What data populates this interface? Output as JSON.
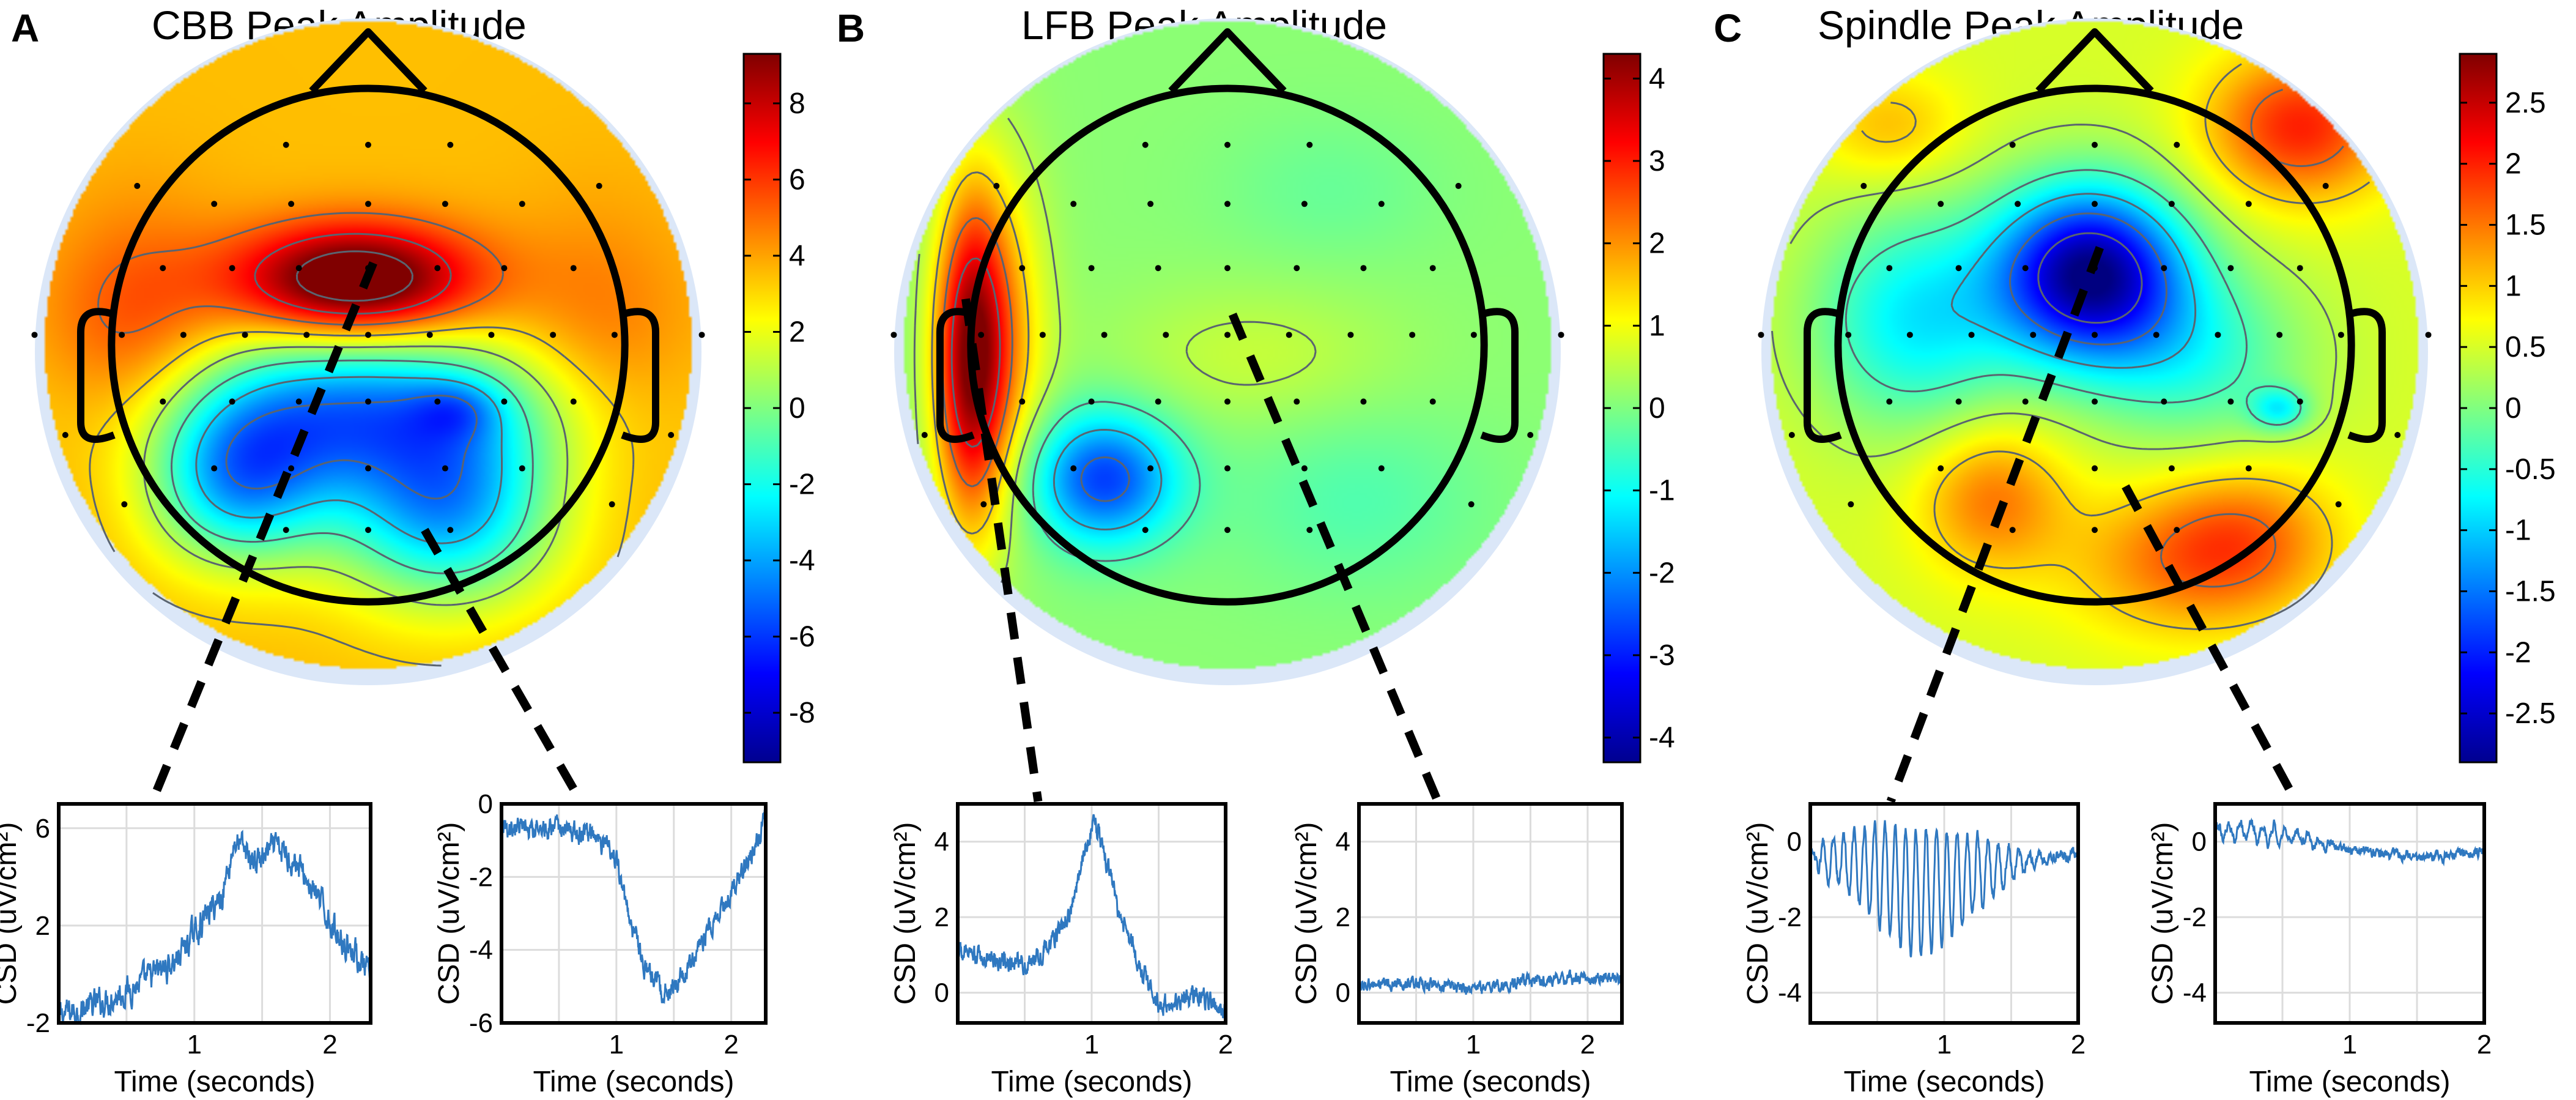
{
  "figure": {
    "colors": {
      "ring": "#dbe7f8",
      "head": "#000000",
      "contour": "#5a6470",
      "trace": "#2f78c0",
      "grid": "#dcdcdc"
    }
  },
  "chart_data": [
    {
      "type": "heatmap",
      "id": "A",
      "panel_letter": "A",
      "title": "CBB Peak Amplitude",
      "colorbar": {
        "range": [
          -9.3,
          9.3
        ],
        "ticks": [
          8,
          6,
          4,
          2,
          0,
          -2,
          -4,
          -6,
          -8
        ],
        "tick_labels": [
          "8",
          "6",
          "4",
          "2",
          "0",
          "-2",
          "-4",
          "-6",
          "-8"
        ],
        "colormap": "jet"
      },
      "topomap": {
        "baseline": 3.5,
        "blobs": [
          {
            "u": -0.05,
            "v": -0.25,
            "amp": 8.0,
            "sx": 0.32,
            "sy": 0.15
          },
          {
            "u": -0.9,
            "v": 0.0,
            "amp": 2.5,
            "sx": 0.25,
            "sy": 0.35
          },
          {
            "u": 0.9,
            "v": 0.0,
            "amp": 1.5,
            "sx": 0.25,
            "sy": 0.35
          },
          {
            "u": -0.05,
            "v": 0.25,
            "amp": -7.5,
            "sx": 0.55,
            "sy": 0.22
          },
          {
            "u": -0.5,
            "v": 0.55,
            "amp": -6.5,
            "sx": 0.25,
            "sy": 0.22
          },
          {
            "u": 0.3,
            "v": 0.65,
            "amp": -7.0,
            "sx": 0.3,
            "sy": 0.25
          },
          {
            "u": 0.35,
            "v": 0.25,
            "amp": -2.0,
            "sx": 0.12,
            "sy": 0.08
          }
        ]
      },
      "pointers": [
        {
          "from": [
            0.02,
            -0.32
          ],
          "to_panel": "A1"
        },
        {
          "from": [
            0.22,
            0.72
          ],
          "to_panel": "A2"
        }
      ],
      "time_series": [
        {
          "id": "A1",
          "x_range": [
            0,
            2.3
          ],
          "y_range": [
            -2,
            7
          ],
          "x_ticks": [
            1,
            2
          ],
          "y_ticks": [
            -2,
            2,
            6
          ],
          "y_tick_labels": [
            "-2",
            "2",
            "6"
          ],
          "x_label": "Time (seconds)",
          "y_label": "CSD (uV/cm²)",
          "keypoints": [
            [
              0,
              -1.7
            ],
            [
              0.3,
              -1.2
            ],
            [
              0.6,
              -0.4
            ],
            [
              0.85,
              0.5
            ],
            [
              1.0,
              1.7
            ],
            [
              1.1,
              2.5
            ],
            [
              1.2,
              3.2
            ],
            [
              1.3,
              5.5
            ],
            [
              1.45,
              4.6
            ],
            [
              1.6,
              5.2
            ],
            [
              1.75,
              4.6
            ],
            [
              1.9,
              3.2
            ],
            [
              2.05,
              1.7
            ],
            [
              2.2,
              0.8
            ],
            [
              2.3,
              -0.2
            ]
          ],
          "noise": 0.45,
          "oscillation": 0
        },
        {
          "id": "A2",
          "x_range": [
            0,
            2.3
          ],
          "y_range": [
            -6,
            0
          ],
          "x_ticks": [
            1,
            2
          ],
          "y_ticks": [
            -6,
            -4,
            -2,
            0
          ],
          "y_tick_labels": [
            "-6",
            "-4",
            "-2",
            "0"
          ],
          "x_label": "Time (seconds)",
          "y_label": "CSD (uV/cm²)",
          "keypoints": [
            [
              0,
              -0.6
            ],
            [
              0.4,
              -0.7
            ],
            [
              0.8,
              -0.8
            ],
            [
              1.0,
              -1.5
            ],
            [
              1.1,
              -3.0
            ],
            [
              1.25,
              -4.5
            ],
            [
              1.4,
              -5.2
            ],
            [
              1.6,
              -4.7
            ],
            [
              1.8,
              -3.5
            ],
            [
              2.0,
              -2.5
            ],
            [
              2.2,
              -1.2
            ],
            [
              2.3,
              -0.3
            ]
          ],
          "noise": 0.22,
          "oscillation": 0
        }
      ]
    },
    {
      "type": "heatmap",
      "id": "B",
      "panel_letter": "B",
      "title": "LFB Peak Amplitude",
      "colorbar": {
        "range": [
          -4.3,
          4.3
        ],
        "ticks": [
          4,
          3,
          2,
          1,
          0,
          -1,
          -2,
          -3,
          -4
        ],
        "tick_labels": [
          "4",
          "3",
          "2",
          "1",
          "0",
          "-1",
          "-2",
          "-3",
          "-4"
        ],
        "colormap": "jet"
      },
      "topomap": {
        "baseline": 0.1,
        "blobs": [
          {
            "u": -1.0,
            "v": 0.05,
            "amp": 4.0,
            "sx": 0.1,
            "sy": 0.45
          },
          {
            "u": -0.85,
            "v": -0.05,
            "amp": 1.2,
            "sx": 0.12,
            "sy": 0.45
          },
          {
            "u": -0.48,
            "v": 0.52,
            "amp": -2.8,
            "sx": 0.2,
            "sy": 0.18
          },
          {
            "u": 0.1,
            "v": 0.05,
            "amp": 0.5,
            "sx": 0.4,
            "sy": 0.2
          },
          {
            "u": 0.5,
            "v": 0.6,
            "amp": -0.5,
            "sx": 0.35,
            "sy": 0.25
          },
          {
            "u": 0.4,
            "v": -0.6,
            "amp": -0.3,
            "sx": 0.3,
            "sy": 0.2
          }
        ]
      },
      "pointers": [
        {
          "from": [
            -1.02,
            -0.18
          ],
          "to_panel": "B1"
        },
        {
          "from": [
            0.02,
            -0.12
          ],
          "to_panel": "B2"
        }
      ],
      "time_series": [
        {
          "id": "B1",
          "x_range": [
            0,
            2
          ],
          "y_range": [
            -0.8,
            5
          ],
          "x_ticks": [
            1,
            2
          ],
          "y_ticks": [
            0,
            2,
            4
          ],
          "y_tick_labels": [
            "0",
            "2",
            "4"
          ],
          "x_label": "Time (seconds)",
          "y_label": "CSD (uV/cm²)",
          "keypoints": [
            [
              0,
              1.1
            ],
            [
              0.3,
              0.9
            ],
            [
              0.55,
              0.8
            ],
            [
              0.7,
              1.3
            ],
            [
              0.85,
              2.2
            ],
            [
              0.95,
              3.8
            ],
            [
              1.02,
              4.6
            ],
            [
              1.1,
              3.6
            ],
            [
              1.2,
              2.2
            ],
            [
              1.35,
              0.8
            ],
            [
              1.5,
              -0.3
            ],
            [
              1.7,
              -0.1
            ],
            [
              1.85,
              -0.2
            ],
            [
              2.0,
              -0.4
            ]
          ],
          "noise": 0.2,
          "oscillation": 0
        },
        {
          "id": "B2",
          "x_range": [
            0,
            2.3
          ],
          "y_range": [
            -0.8,
            5
          ],
          "x_ticks": [
            1,
            2
          ],
          "y_ticks": [
            0,
            2,
            4
          ],
          "y_tick_labels": [
            "0",
            "2",
            "4"
          ],
          "x_label": "Time (seconds)",
          "y_label": "CSD (uV/cm²)",
          "keypoints": [
            [
              0,
              0.2
            ],
            [
              0.5,
              0.25
            ],
            [
              1.0,
              0.1
            ],
            [
              1.5,
              0.3
            ],
            [
              2.0,
              0.4
            ],
            [
              2.3,
              0.4
            ]
          ],
          "noise": 0.12,
          "oscillation": 0
        }
      ]
    },
    {
      "type": "heatmap",
      "id": "C",
      "panel_letter": "C",
      "title": "Spindle Peak Amplitude",
      "colorbar": {
        "range": [
          -2.9,
          2.9
        ],
        "ticks": [
          2.5,
          2,
          1.5,
          1,
          0.5,
          0,
          -0.5,
          -1,
          -1.5,
          -2,
          -2.5
        ],
        "tick_labels": [
          "2.5",
          "2",
          "1.5",
          "1",
          "0.5",
          "0",
          "-0.5",
          "-1",
          "-1.5",
          "-2",
          "-2.5"
        ],
        "colormap": "jet"
      },
      "topomap": {
        "baseline": 0.5,
        "blobs": [
          {
            "u": -0.02,
            "v": -0.28,
            "amp": -3.3,
            "sx": 0.26,
            "sy": 0.24
          },
          {
            "u": -0.7,
            "v": -0.1,
            "amp": -1.3,
            "sx": 0.28,
            "sy": 0.3
          },
          {
            "u": 0.4,
            "v": 0.05,
            "amp": -0.9,
            "sx": 0.3,
            "sy": 0.25
          },
          {
            "u": 0.72,
            "v": 0.25,
            "amp": -1.0,
            "sx": 0.08,
            "sy": 0.06
          },
          {
            "u": 0.8,
            "v": -0.85,
            "amp": 1.5,
            "sx": 0.25,
            "sy": 0.2
          },
          {
            "u": -0.8,
            "v": -0.85,
            "amp": 0.6,
            "sx": 0.2,
            "sy": 0.15
          },
          {
            "u": 0.3,
            "v": 0.85,
            "amp": 0.8,
            "sx": 0.3,
            "sy": 0.2
          },
          {
            "u": -0.4,
            "v": 0.6,
            "amp": 1.0,
            "sx": 0.2,
            "sy": 0.2
          },
          {
            "u": 0.6,
            "v": 0.75,
            "amp": 0.9,
            "sx": 0.25,
            "sy": 0.2
          }
        ]
      },
      "pointers": [
        {
          "from": [
            0.02,
            -0.38
          ],
          "to_panel": "C1"
        },
        {
          "from": [
            0.12,
            0.55
          ],
          "to_panel": "C2"
        }
      ],
      "time_series": [
        {
          "id": "C1",
          "x_range": [
            0,
            2
          ],
          "y_range": [
            -4.8,
            1
          ],
          "x_ticks": [
            1,
            2
          ],
          "y_ticks": [
            -4,
            -2,
            0
          ],
          "y_tick_labels": [
            "-4",
            "-2",
            "0"
          ],
          "x_label": "Time (seconds)",
          "y_label": "CSD (uV/cm²)",
          "keypoints": [
            [
              0,
              -0.4
            ],
            [
              0.3,
              -0.6
            ],
            [
              0.6,
              -1.0
            ],
            [
              0.8,
              -1.4
            ],
            [
              1.0,
              -1.2
            ],
            [
              1.2,
              -0.9
            ],
            [
              1.5,
              -0.6
            ],
            [
              2.0,
              -0.3
            ]
          ],
          "noise": 0.12,
          "oscillation": {
            "freq": 13,
            "center": 0.8,
            "width": 0.42,
            "amp": 1.7
          }
        },
        {
          "id": "C2",
          "x_range": [
            0,
            2
          ],
          "y_range": [
            -4.8,
            1
          ],
          "x_ticks": [
            1,
            2
          ],
          "y_ticks": [
            -4,
            -2,
            0
          ],
          "y_tick_labels": [
            "-4",
            "-2",
            "0"
          ],
          "x_label": "Time (seconds)",
          "y_label": "CSD (uV/cm²)",
          "keypoints": [
            [
              0,
              0.3
            ],
            [
              0.5,
              0.2
            ],
            [
              1.0,
              -0.2
            ],
            [
              1.5,
              -0.4
            ],
            [
              2.0,
              -0.3
            ]
          ],
          "noise": 0.1,
          "oscillation": {
            "freq": 12,
            "center": 0.35,
            "width": 0.3,
            "amp": 0.25
          }
        }
      ]
    }
  ]
}
